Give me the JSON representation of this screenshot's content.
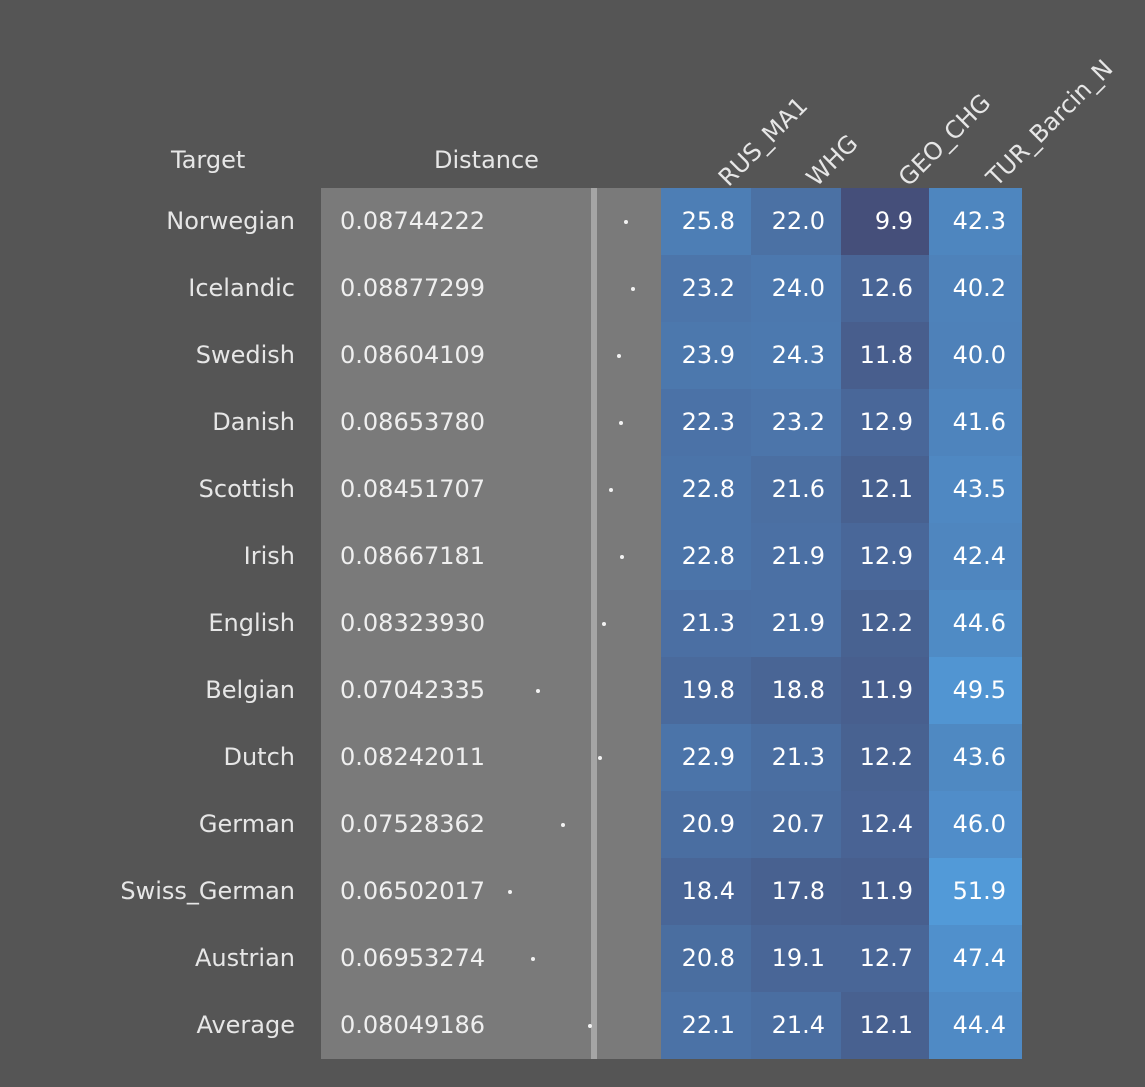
{
  "chart_data": {
    "type": "table",
    "headers": {
      "target": "Target",
      "distance": "Distance",
      "columns": [
        "RUS_MA1",
        "WHG",
        "GEO_CHG",
        "TUR_Barcin_N"
      ]
    },
    "rows": [
      {
        "target": "Norwegian",
        "distance": "0.08744222",
        "values": [
          "25.8",
          "22.0",
          "9.9",
          "42.3"
        ]
      },
      {
        "target": "Icelandic",
        "distance": "0.08877299",
        "values": [
          "23.2",
          "24.0",
          "12.6",
          "40.2"
        ]
      },
      {
        "target": "Swedish",
        "distance": "0.08604109",
        "values": [
          "23.9",
          "24.3",
          "11.8",
          "40.0"
        ]
      },
      {
        "target": "Danish",
        "distance": "0.08653780",
        "values": [
          "22.3",
          "23.2",
          "12.9",
          "41.6"
        ]
      },
      {
        "target": "Scottish",
        "distance": "0.08451707",
        "values": [
          "22.8",
          "21.6",
          "12.1",
          "43.5"
        ]
      },
      {
        "target": "Irish",
        "distance": "0.08667181",
        "values": [
          "22.8",
          "21.9",
          "12.9",
          "42.4"
        ]
      },
      {
        "target": "English",
        "distance": "0.08323930",
        "values": [
          "21.3",
          "21.9",
          "12.2",
          "44.6"
        ]
      },
      {
        "target": "Belgian",
        "distance": "0.07042335",
        "values": [
          "19.8",
          "18.8",
          "11.9",
          "49.5"
        ]
      },
      {
        "target": "Dutch",
        "distance": "0.08242011",
        "values": [
          "22.9",
          "21.3",
          "12.2",
          "43.6"
        ]
      },
      {
        "target": "German",
        "distance": "0.07528362",
        "values": [
          "20.9",
          "20.7",
          "12.4",
          "46.0"
        ]
      },
      {
        "target": "Swiss_German",
        "distance": "0.06502017",
        "values": [
          "18.4",
          "17.8",
          "11.9",
          "51.9"
        ]
      },
      {
        "target": "Austrian",
        "distance": "0.06953274",
        "values": [
          "20.8",
          "19.1",
          "12.7",
          "47.4"
        ]
      },
      {
        "target": "Average",
        "distance": "0.08049186",
        "values": [
          "22.1",
          "21.4",
          "12.1",
          "44.4"
        ]
      }
    ],
    "colors": {
      "background": "#555555",
      "distance_panel": "#7a7a7a",
      "heat_low": "#454f7a",
      "heat_high": "#53a0e0"
    }
  }
}
